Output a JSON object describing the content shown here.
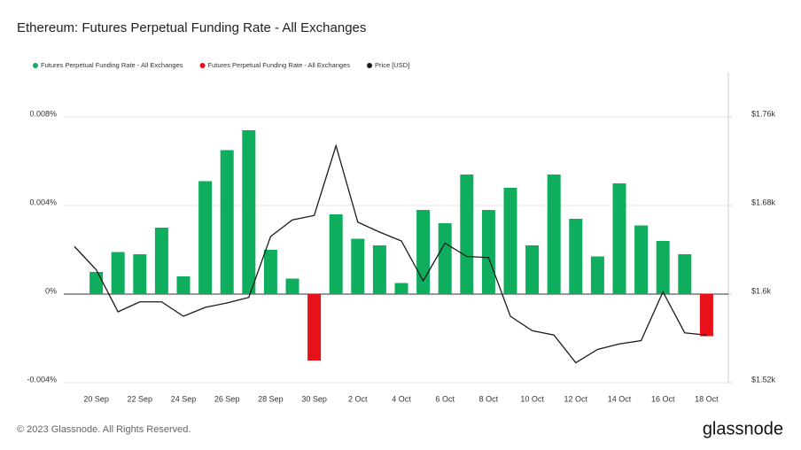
{
  "chart_data": {
    "type": "bar_line",
    "title": "Ethereum: Futures Perpetual Funding Rate - All Exchanges",
    "categories": [
      null,
      "20 Sep",
      null,
      "22 Sep",
      null,
      "24 Sep",
      null,
      "26 Sep",
      null,
      "28 Sep",
      null,
      "30 Sep",
      null,
      "2 Oct",
      null,
      "4 Oct",
      null,
      "6 Oct",
      null,
      "8 Oct",
      null,
      "10 Oct",
      null,
      "12 Oct",
      null,
      "14 Oct",
      null,
      "16 Oct",
      null,
      "18 Oct"
    ],
    "series": [
      {
        "name": "Futures Perpetual Funding Rate - All Exchanges",
        "color": "#0fae5e",
        "type": "bar",
        "values": [
          null,
          0.001,
          0.0019,
          0.0018,
          0.003,
          0.0008,
          0.0051,
          0.0065,
          0.0074,
          0.002,
          0.0007,
          null,
          0.0036,
          0.0025,
          0.0022,
          0.0005,
          0.0038,
          0.0032,
          0.0054,
          0.0038,
          0.0048,
          0.0022,
          0.0054,
          0.0034,
          0.0017,
          0.005,
          0.0031,
          0.0024,
          0.0018,
          null
        ]
      },
      {
        "name": "Futures Perpetual Funding Rate - All Exchanges",
        "color": "#e8111a",
        "type": "bar",
        "values": [
          null,
          null,
          null,
          null,
          null,
          null,
          null,
          null,
          null,
          null,
          null,
          -0.003,
          null,
          null,
          null,
          null,
          null,
          null,
          null,
          null,
          null,
          null,
          null,
          null,
          null,
          null,
          null,
          null,
          null,
          -0.0019
        ]
      },
      {
        "name": "Price [USD]",
        "color": "#1a1a1a",
        "type": "line",
        "axis": "y2",
        "values": [
          1643,
          1622,
          1584,
          1593,
          1593,
          1580,
          1588,
          1592,
          1597,
          1652,
          1667,
          1671,
          1734,
          1665,
          1656,
          1648,
          1612,
          1646,
          1634,
          1633,
          1580,
          1567,
          1563,
          1538,
          1550,
          1555,
          1558,
          1602,
          1565,
          1563
        ]
      }
    ],
    "ylim": [
      -0.004,
      0.01
    ],
    "yticks": [
      {
        "value": -0.004,
        "label": "-0.004%"
      },
      {
        "value": 0,
        "label": "0%"
      },
      {
        "value": 0.004,
        "label": "0.004%"
      },
      {
        "value": 0.008,
        "label": "0.008%"
      }
    ],
    "y2lim": [
      1520,
      1800
    ],
    "y2ticks": [
      {
        "value": 1520,
        "label": "$1.52k"
      },
      {
        "value": 1600,
        "label": "$1.6k"
      },
      {
        "value": 1680,
        "label": "$1.68k"
      },
      {
        "value": 1760,
        "label": "$1.76k"
      }
    ],
    "grid": true
  },
  "footer": "© 2023 Glassnode. All Rights Reserved.",
  "logo": "glassnode"
}
